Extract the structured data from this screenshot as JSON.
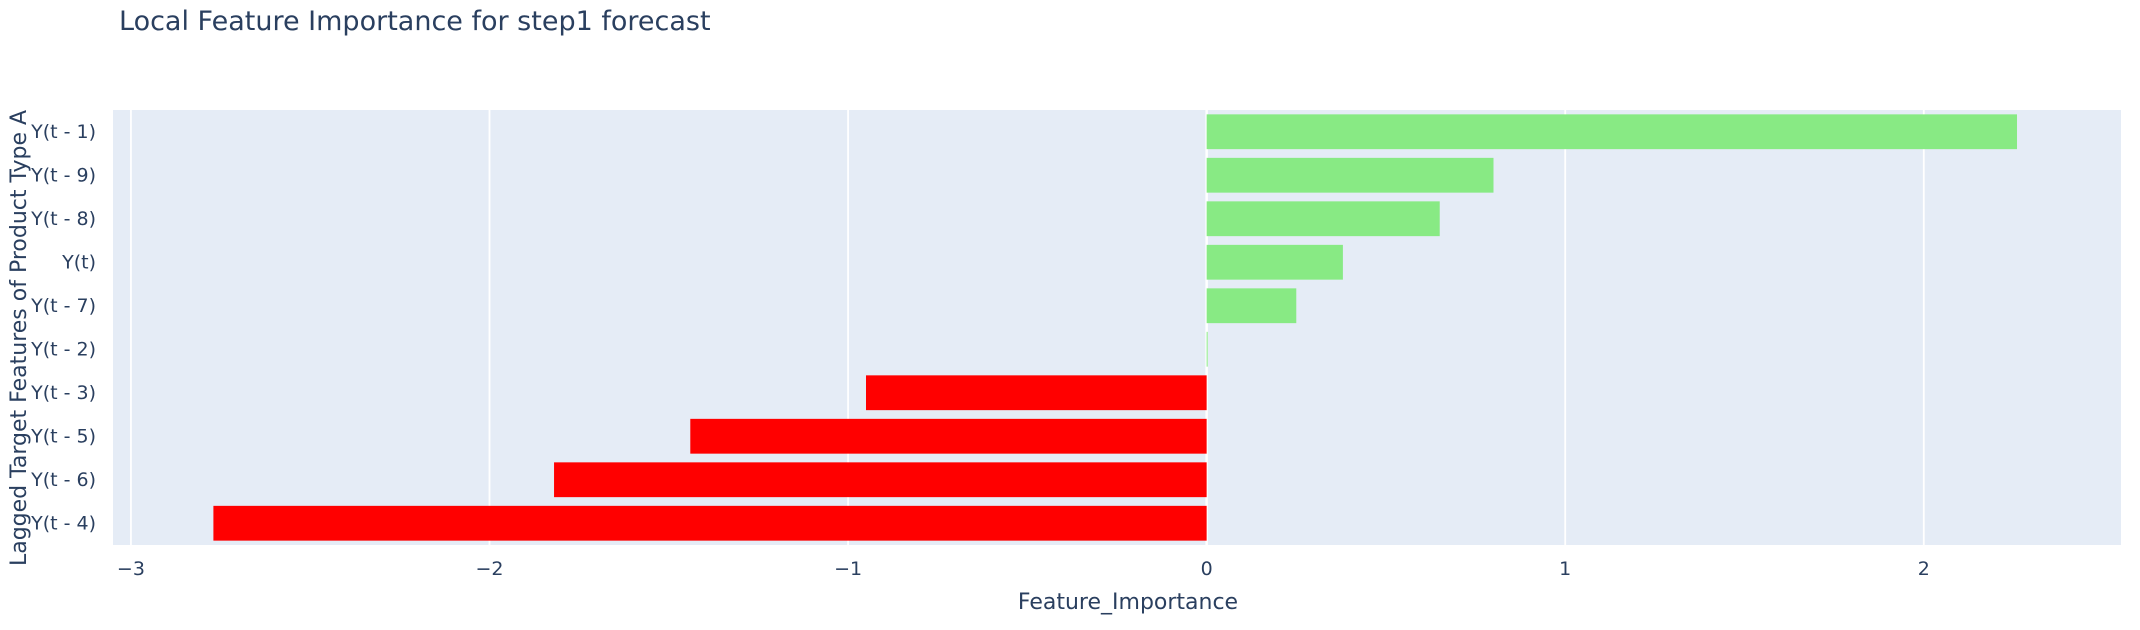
{
  "chart_data": {
    "type": "bar",
    "orientation": "horizontal",
    "title": "Local Feature Importance for step1 forecast",
    "xlabel": "Feature_Importance",
    "ylabel": "Lagged Target Features of Product Type A",
    "xlim": [
      -3.05,
      2.55
    ],
    "xticks": [
      -3,
      -2,
      -1,
      0,
      1,
      2
    ],
    "xtick_labels": [
      "−3",
      "−2",
      "−1",
      "0",
      "1",
      "2"
    ],
    "grid": true,
    "categories": [
      "Y(t - 1)",
      "Y(t - 9)",
      "Y(t - 8)",
      "Y(t)",
      "Y(t - 7)",
      "Y(t - 2)",
      "Y(t - 3)",
      "Y(t - 5)",
      "Y(t - 6)",
      "Y(t - 4)"
    ],
    "values": [
      2.26,
      0.8,
      0.65,
      0.38,
      0.25,
      0.0,
      -0.95,
      -1.44,
      -1.82,
      -2.77
    ],
    "colors": {
      "positive": "#88ea84",
      "negative": "#ff0000",
      "plot_background": "#e5ecf6",
      "grid": "#ffffff",
      "text": "#2a3f5f"
    }
  }
}
